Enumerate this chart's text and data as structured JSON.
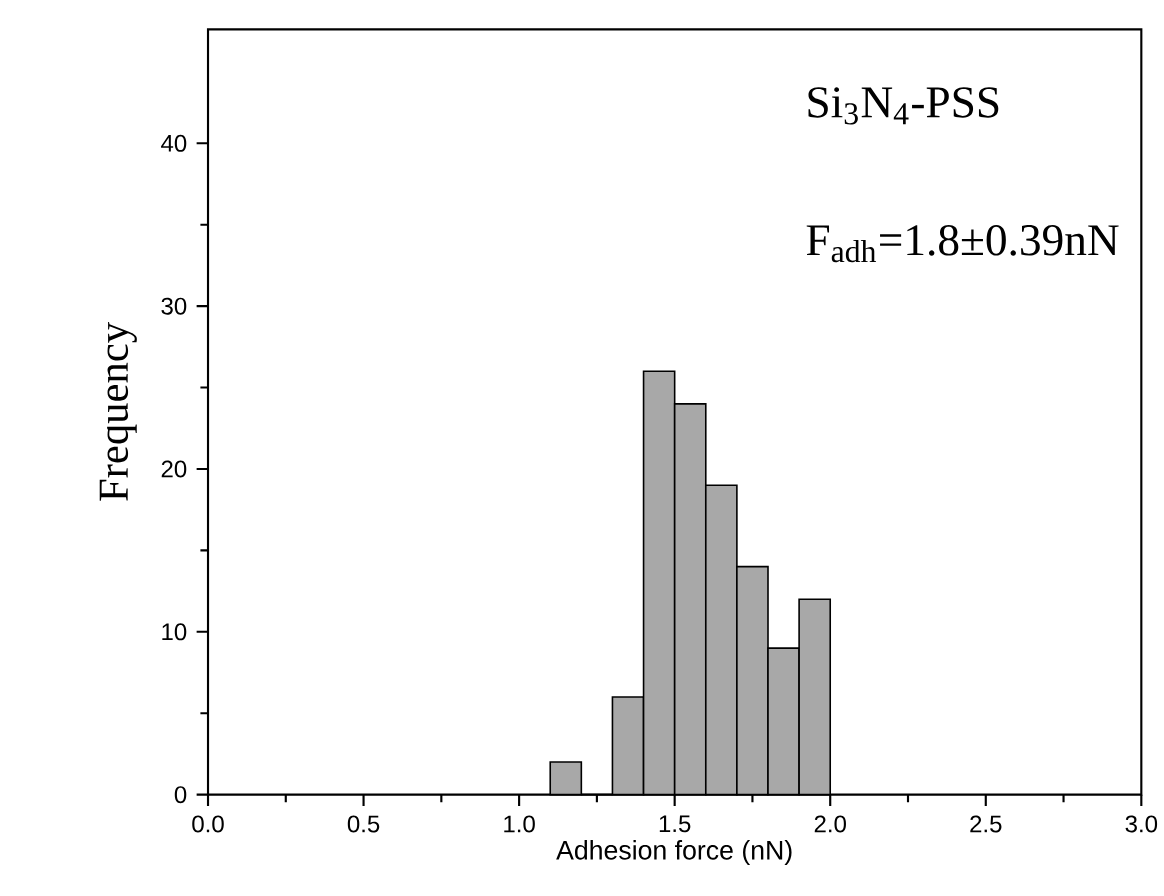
{
  "chart_data": {
    "type": "histogram",
    "xlabel": "Adhesion force (nN)",
    "ylabel": "Frequency",
    "bins": [
      1.1,
      1.2,
      1.3,
      1.4,
      1.5,
      1.6,
      1.7,
      1.8,
      1.9,
      2.0
    ],
    "values": [
      2,
      0,
      6,
      26,
      24,
      19,
      14,
      9,
      12
    ],
    "color": "#a8a8a8",
    "xlim": [
      0,
      3
    ],
    "xticks": [
      {
        "value": 0,
        "label": "0.0"
      },
      0.5,
      {
        "value": 1,
        "label": "1.0"
      },
      1.5,
      {
        "value": 2,
        "label": "2.0"
      },
      2.5,
      {
        "value": 3,
        "label": "3.0"
      }
    ],
    "ylim": [
      0,
      47
    ],
    "yticks": [
      0,
      10,
      20,
      30,
      40
    ],
    "annotations": [
      "Si$_{3}$N$_{4}$-PSS",
      "F$_{adh}$=1.8±0.39nN"
    ],
    "grid": false
  }
}
